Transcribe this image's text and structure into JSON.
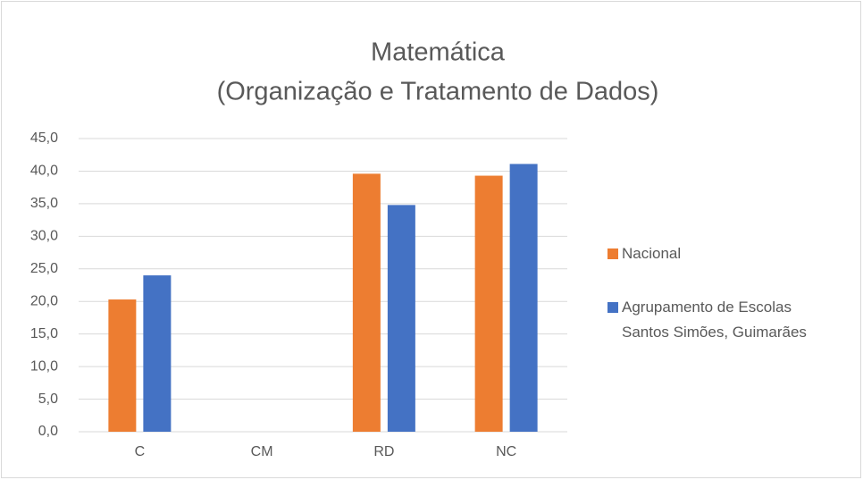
{
  "chart_data": {
    "type": "bar",
    "title": [
      "Matemática",
      "(Organização e Tratamento de Dados)"
    ],
    "categories": [
      "C",
      "CM",
      "RD",
      "NC"
    ],
    "series": [
      {
        "name": "Nacional",
        "color": "#ed7d31",
        "values": [
          20.3,
          null,
          39.6,
          39.3
        ]
      },
      {
        "name": "Agrupamento de Escolas Santos Simões, Guimarães",
        "color": "#4472c4",
        "values": [
          24.0,
          null,
          34.8,
          41.1
        ]
      }
    ],
    "ylim": [
      0,
      45
    ],
    "yticks": [
      {
        "value": 0,
        "label": "0,0"
      },
      {
        "value": 5,
        "label": "5,0"
      },
      {
        "value": 10,
        "label": "10,0"
      },
      {
        "value": 15,
        "label": "15,0"
      },
      {
        "value": 20,
        "label": "20,0"
      },
      {
        "value": 25,
        "label": "25,0"
      },
      {
        "value": 30,
        "label": "30,0"
      },
      {
        "value": 35,
        "label": "35,0"
      },
      {
        "value": 40,
        "label": "40,0"
      },
      {
        "value": 45,
        "label": "45,0"
      }
    ],
    "grid": true,
    "legend": "right"
  }
}
